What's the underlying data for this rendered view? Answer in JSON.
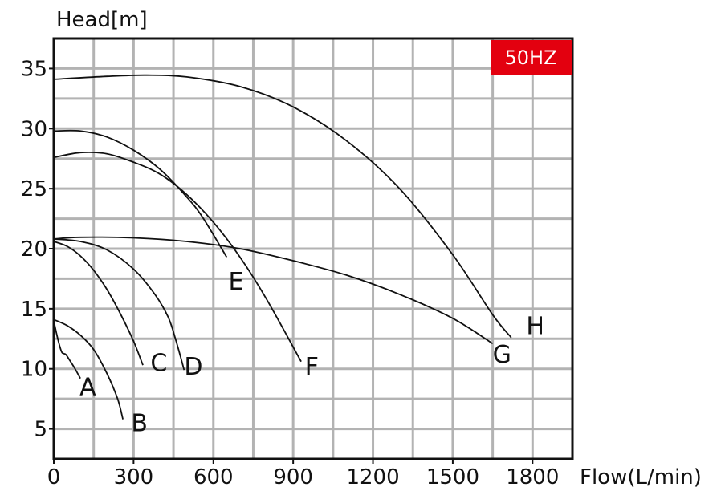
{
  "chart_data": {
    "type": "line",
    "xlabel": "Flow(L/min)",
    "ylabel": "Head[m]",
    "xlim": [
      0,
      1950
    ],
    "ylim": [
      2.5,
      37.5
    ],
    "x_ticks": [
      0,
      300,
      600,
      900,
      1200,
      1500,
      1800
    ],
    "y_ticks": [
      5,
      10,
      15,
      20,
      25,
      30,
      35
    ],
    "grid": true,
    "badge": {
      "text": "50HZ",
      "color": "#e3000f"
    },
    "curve_color": "#111111",
    "series": [
      {
        "name": "A",
        "points": [
          [
            0,
            14
          ],
          [
            15,
            12.5
          ],
          [
            30,
            11.4
          ],
          [
            45,
            11.2
          ],
          [
            60,
            10.7
          ],
          [
            80,
            10
          ],
          [
            100,
            9.2
          ]
        ]
      },
      {
        "name": "B",
        "points": [
          [
            0,
            14.1
          ],
          [
            50,
            13.6
          ],
          [
            100,
            12.8
          ],
          [
            150,
            11.6
          ],
          [
            200,
            9.6
          ],
          [
            240,
            7.5
          ],
          [
            260,
            5.8
          ]
        ]
      },
      {
        "name": "C",
        "points": [
          [
            0,
            20.6
          ],
          [
            50,
            20.2
          ],
          [
            100,
            19.4
          ],
          [
            150,
            18.2
          ],
          [
            200,
            16.6
          ],
          [
            250,
            14.6
          ],
          [
            300,
            12.3
          ],
          [
            335,
            10.3
          ]
        ]
      },
      {
        "name": "D",
        "points": [
          [
            0,
            20.8
          ],
          [
            100,
            20.6
          ],
          [
            200,
            19.9
          ],
          [
            300,
            18.3
          ],
          [
            380,
            16.2
          ],
          [
            430,
            14.3
          ],
          [
            460,
            12.3
          ],
          [
            490,
            9.9
          ]
        ]
      },
      {
        "name": "E",
        "points": [
          [
            0,
            29.8
          ],
          [
            100,
            29.8
          ],
          [
            200,
            29.3
          ],
          [
            300,
            28.2
          ],
          [
            400,
            26.6
          ],
          [
            500,
            24.3
          ],
          [
            560,
            22.6
          ],
          [
            650,
            19.3
          ]
        ]
      },
      {
        "name": "F",
        "points": [
          [
            0,
            27.6
          ],
          [
            100,
            28
          ],
          [
            200,
            27.9
          ],
          [
            300,
            27.2
          ],
          [
            400,
            26.2
          ],
          [
            500,
            24.5
          ],
          [
            600,
            22.2
          ],
          [
            700,
            19.3
          ],
          [
            800,
            15.8
          ],
          [
            930,
            10.6
          ]
        ]
      },
      {
        "name": "G",
        "points": [
          [
            0,
            20.8
          ],
          [
            100,
            20.95
          ],
          [
            300,
            20.9
          ],
          [
            500,
            20.6
          ],
          [
            700,
            20
          ],
          [
            900,
            19
          ],
          [
            1100,
            17.8
          ],
          [
            1300,
            16.2
          ],
          [
            1500,
            14.2
          ],
          [
            1650,
            12.1
          ]
        ]
      },
      {
        "name": "H",
        "points": [
          [
            0,
            34.1
          ],
          [
            200,
            34.35
          ],
          [
            350,
            34.45
          ],
          [
            500,
            34.3
          ],
          [
            700,
            33.5
          ],
          [
            900,
            31.8
          ],
          [
            1100,
            29
          ],
          [
            1300,
            25
          ],
          [
            1500,
            19.5
          ],
          [
            1650,
            14.5
          ],
          [
            1720,
            12.6
          ]
        ]
      }
    ],
    "labels": [
      {
        "text": "A",
        "x": 128,
        "y": 7.8
      },
      {
        "text": "B",
        "x": 322,
        "y": 4.8
      },
      {
        "text": "C",
        "x": 395,
        "y": 9.8
      },
      {
        "text": "D",
        "x": 525,
        "y": 9.5
      },
      {
        "text": "E",
        "x": 685,
        "y": 16.6
      },
      {
        "text": "F",
        "x": 970,
        "y": 9.5
      },
      {
        "text": "G",
        "x": 1685,
        "y": 10.5
      },
      {
        "text": "H",
        "x": 1810,
        "y": 12.9
      }
    ]
  }
}
